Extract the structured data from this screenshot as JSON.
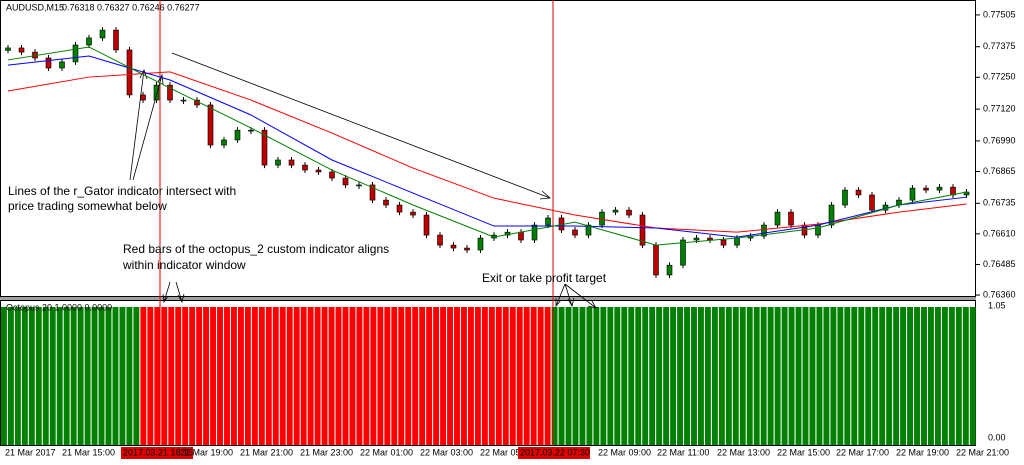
{
  "header": {
    "symbol": "AUDUSD,M15",
    "quote": "0.76318 0.76327 0.76246 0.76277"
  },
  "price_panel": {
    "ylim": [
      0.76352,
      0.77566
    ],
    "ticks": [
      {
        "value": 0.77505,
        "label": "0.77505"
      },
      {
        "value": 0.77375,
        "label": "0.77375"
      },
      {
        "value": 0.7725,
        "label": "0.77250"
      },
      {
        "value": 0.7712,
        "label": "0.77120"
      },
      {
        "value": 0.7699,
        "label": "0.76990"
      },
      {
        "value": 0.76865,
        "label": "0.76865"
      },
      {
        "value": 0.76735,
        "label": "0.76735"
      },
      {
        "value": 0.7661,
        "label": "0.76610"
      },
      {
        "value": 0.76485,
        "label": "0.76485"
      },
      {
        "value": 0.7636,
        "label": "0.76360"
      }
    ],
    "first_open": 0.7736,
    "closes": [
      0.7737,
      0.77353,
      0.77329,
      0.77288,
      0.77313,
      0.77382,
      0.77411,
      0.77443,
      0.77362,
      0.77178,
      0.77157,
      0.77218,
      0.77157,
      0.77157,
      0.77137,
      0.76973,
      0.76994,
      0.77034,
      0.77034,
      0.76891,
      0.76912,
      0.76891,
      0.76871,
      0.76863,
      0.76838,
      0.7681,
      0.7681,
      0.76748,
      0.76728,
      0.76699,
      0.76687,
      0.76605,
      0.76564,
      0.76552,
      0.76544,
      0.76593,
      0.76605,
      0.76617,
      0.76585,
      0.76646,
      0.76675,
      0.76626,
      0.76605,
      0.76646,
      0.76699,
      0.76707,
      0.76687,
      0.76564,
      0.76442,
      0.76482,
      0.76585,
      0.76593,
      0.76585,
      0.76564,
      0.76593,
      0.76601,
      0.76646,
      0.76699,
      0.76646,
      0.76605,
      0.76646,
      0.76728,
      0.76789,
      0.76769,
      0.76707,
      0.76728,
      0.76748,
      0.76797,
      0.76789,
      0.76801,
      0.76769,
      0.76781
    ],
    "lines": [
      {
        "color": "#ff0000",
        "values": [
          0.77194,
          0.77251,
          0.77272,
          0.77157,
          0.77022,
          0.76879,
          0.76756,
          0.76687,
          0.76634,
          0.76617,
          0.7665,
          0.76699,
          0.76732
        ]
      },
      {
        "color": "#0000ff",
        "values": [
          0.773,
          0.77337,
          0.77239,
          0.77096,
          0.76912,
          0.76777,
          0.76642,
          0.76642,
          0.76634,
          0.76597,
          0.76646,
          0.76728,
          0.7676
        ]
      },
      {
        "color": "#008000",
        "values": [
          0.77321,
          0.77374,
          0.77206,
          0.77043,
          0.76871,
          0.76728,
          0.76597,
          0.76658,
          0.76564,
          0.76593,
          0.76634,
          0.76728,
          0.76781
        ]
      }
    ]
  },
  "indicator_panel": {
    "label": "Octopus 20 1.0000 0.0000",
    "top_label": "1.05",
    "bottom_label": "0.00",
    "segments": [
      {
        "color": "#008000",
        "bars": 20
      },
      {
        "color": "#ff0000",
        "bars": 59
      },
      {
        "color": "#008000",
        "bars": 61
      }
    ]
  },
  "time_axis": [
    {
      "label": "21 Mar 2017"
    },
    {
      "label": "21 Mar 15:00"
    },
    {
      "label": "2017.03.21 18:15",
      "highlight": true
    },
    {
      "label": "21 Mar 19:00"
    },
    {
      "label": "21 Mar 21:00"
    },
    {
      "label": "21 Mar 23:00"
    },
    {
      "label": "22 Mar 01:00"
    },
    {
      "label": "22 Mar 03:00"
    },
    {
      "label": "22 Mar 05"
    },
    {
      "label": "2017.03.22 07:30",
      "highlight": true
    },
    {
      "label": "22 Mar 09:00"
    },
    {
      "label": "22 Mar 11:00"
    },
    {
      "label": "22 Mar 13:00"
    },
    {
      "label": "22 Mar 15:00"
    },
    {
      "label": "22 Mar 17:00"
    },
    {
      "label": "22 Mar 19:00"
    },
    {
      "label": "22 Mar 21:00"
    }
  ],
  "annotations": {
    "gator_line1": "Lines of the r_Gator indicator intersect with",
    "gator_line2": "price trading somewhat below",
    "octopus_line1": "Red bars of the octopus_2 custom indicator aligns",
    "octopus_line2": "within indicator window",
    "exit": "Exit or take profit target"
  }
}
